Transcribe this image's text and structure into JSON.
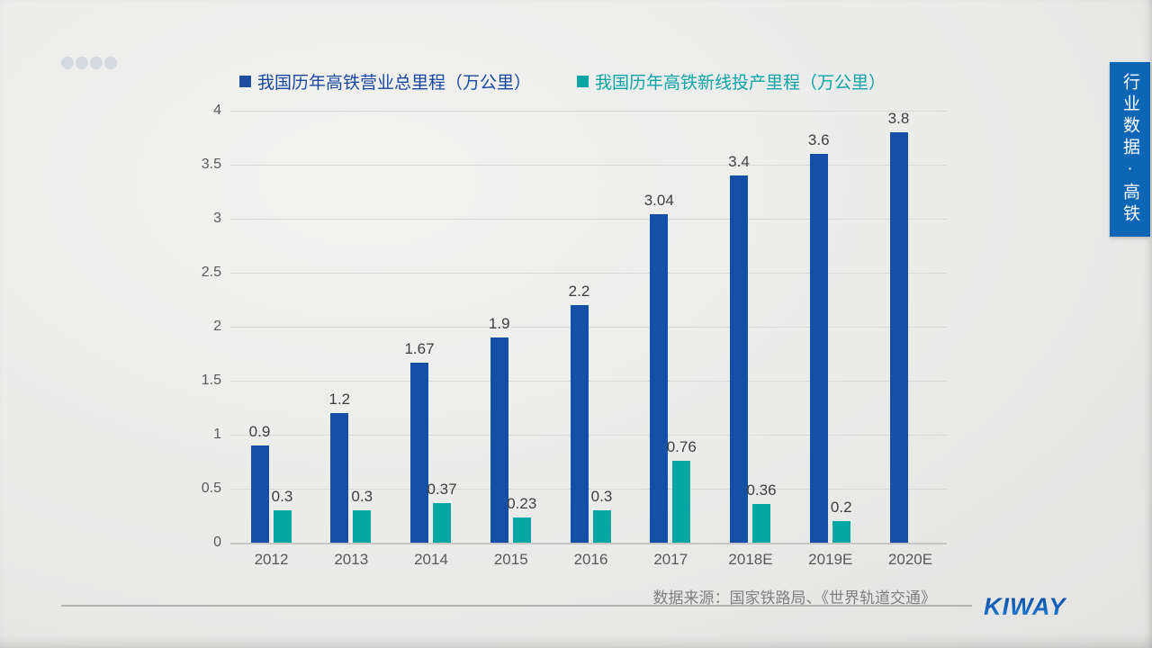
{
  "legend": {
    "items": [
      {
        "label": "我国历年高铁营业总里程（万公里）",
        "color": "#1f4ea0"
      },
      {
        "label": "我国历年高铁新线投产里程（万公里）",
        "color": "#0ba6a4"
      }
    ]
  },
  "chart_data": {
    "type": "bar",
    "title": "",
    "xlabel": "",
    "ylabel": "",
    "categories": [
      "2012",
      "2013",
      "2014",
      "2015",
      "2016",
      "2017",
      "2018E",
      "2019E",
      "2020E"
    ],
    "series": [
      {
        "name": "我国历年高铁营业总里程（万公里）",
        "color": "#1450a6",
        "values": [
          0.9,
          1.2,
          1.67,
          1.9,
          2.2,
          3.04,
          3.4,
          3.6,
          3.8
        ],
        "labels": [
          "0.9",
          "1.2",
          "1.67",
          "1.9",
          "2.2",
          "3.04",
          "3.4",
          "3.6",
          "3.8"
        ]
      },
      {
        "name": "我国历年高铁新线投产里程（万公里）",
        "color": "#07a8a4",
        "values": [
          0.3,
          0.3,
          0.37,
          0.23,
          0.3,
          0.76,
          0.36,
          0.2,
          null
        ],
        "labels": [
          "0.3",
          "0.3",
          "0.37",
          "0.23",
          "0.3",
          "0.76",
          "0.36",
          "0.2",
          ""
        ]
      }
    ],
    "ylim": [
      0,
      4
    ],
    "yticks": [
      "0",
      "0.5",
      "1",
      "1.5",
      "2",
      "2.5",
      "3",
      "3.5",
      "4"
    ],
    "grid": true,
    "legend_position": "top"
  },
  "side_tab": {
    "label": "行业数据·高铁",
    "bg_color": "#0d65b5"
  },
  "footer": {
    "source_text": "数据来源：国家铁路局、《世界轨道交通》",
    "brand": "KIWAY"
  }
}
